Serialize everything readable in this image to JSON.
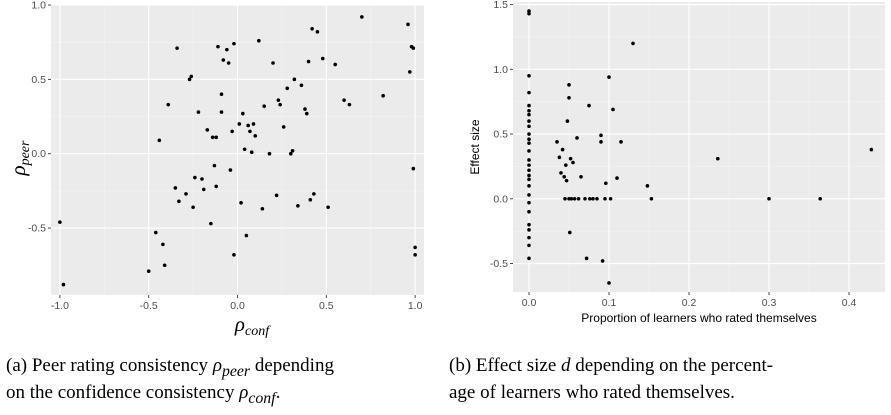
{
  "chart_data": [
    {
      "id": "a",
      "type": "scatter",
      "xlabel": "ρ_conf",
      "ylabel": "ρ_peer",
      "xlim": [
        -1.05,
        1.05
      ],
      "ylim": [
        -0.95,
        1.0
      ],
      "xticks": [
        -1.0,
        -0.5,
        0.0,
        0.5,
        1.0
      ],
      "xtick_labels": [
        "-1.0",
        "-0.5",
        "0.0",
        "0.5",
        "1.0"
      ],
      "yticks": [
        -0.5,
        0.0,
        0.5,
        1.0
      ],
      "ytick_labels": [
        "-0.5",
        "0.0",
        "0.5",
        "1.0"
      ],
      "grid": true,
      "points": [
        [
          -1.0,
          -0.46
        ],
        [
          -0.98,
          -0.88
        ],
        [
          -0.5,
          -0.79
        ],
        [
          -0.46,
          -0.53
        ],
        [
          -0.44,
          0.09
        ],
        [
          -0.42,
          -0.61
        ],
        [
          -0.41,
          -0.75
        ],
        [
          -0.39,
          0.33
        ],
        [
          -0.34,
          0.71
        ],
        [
          -0.35,
          -0.23
        ],
        [
          -0.33,
          -0.32
        ],
        [
          -0.29,
          -0.27
        ],
        [
          -0.27,
          0.5
        ],
        [
          -0.26,
          0.52
        ],
        [
          -0.25,
          -0.36
        ],
        [
          -0.24,
          -0.16
        ],
        [
          -0.22,
          0.28
        ],
        [
          -0.2,
          -0.17
        ],
        [
          -0.19,
          -0.24
        ],
        [
          -0.17,
          0.16
        ],
        [
          -0.15,
          -0.47
        ],
        [
          -0.14,
          0.11
        ],
        [
          -0.13,
          -0.08
        ],
        [
          -0.12,
          0.11
        ],
        [
          -0.12,
          -0.22
        ],
        [
          -0.11,
          0.72
        ],
        [
          -0.09,
          0.4
        ],
        [
          -0.09,
          0.28
        ],
        [
          -0.08,
          0.63
        ],
        [
          -0.06,
          0.7
        ],
        [
          -0.05,
          0.61
        ],
        [
          -0.04,
          -0.11
        ],
        [
          -0.03,
          0.15
        ],
        [
          -0.02,
          0.74
        ],
        [
          -0.02,
          -0.68
        ],
        [
          0.01,
          0.2
        ],
        [
          0.02,
          -0.33
        ],
        [
          0.03,
          0.27
        ],
        [
          0.04,
          0.03
        ],
        [
          0.05,
          -0.55
        ],
        [
          0.06,
          0.19
        ],
        [
          0.07,
          0.15
        ],
        [
          0.08,
          0.01
        ],
        [
          0.09,
          0.2
        ],
        [
          0.1,
          0.12
        ],
        [
          0.12,
          0.76
        ],
        [
          0.14,
          -0.37
        ],
        [
          0.15,
          0.32
        ],
        [
          0.18,
          0.0
        ],
        [
          0.2,
          0.61
        ],
        [
          0.22,
          -0.28
        ],
        [
          0.23,
          0.36
        ],
        [
          0.24,
          0.33
        ],
        [
          0.26,
          0.18
        ],
        [
          0.28,
          0.44
        ],
        [
          0.3,
          0.0
        ],
        [
          0.31,
          0.02
        ],
        [
          0.32,
          0.5
        ],
        [
          0.34,
          -0.35
        ],
        [
          0.36,
          0.46
        ],
        [
          0.38,
          0.3
        ],
        [
          0.39,
          0.27
        ],
        [
          0.4,
          0.62
        ],
        [
          0.41,
          -0.31
        ],
        [
          0.42,
          0.84
        ],
        [
          0.43,
          -0.27
        ],
        [
          0.45,
          0.82
        ],
        [
          0.48,
          0.64
        ],
        [
          0.51,
          -0.36
        ],
        [
          0.55,
          0.6
        ],
        [
          0.6,
          0.36
        ],
        [
          0.63,
          0.33
        ],
        [
          0.7,
          0.92
        ],
        [
          0.82,
          0.39
        ],
        [
          0.96,
          0.87
        ],
        [
          0.97,
          0.55
        ],
        [
          0.98,
          0.72
        ],
        [
          0.99,
          0.71
        ],
        [
          0.99,
          -0.1
        ],
        [
          1.0,
          -0.63
        ],
        [
          1.0,
          -0.68
        ]
      ]
    },
    {
      "id": "b",
      "type": "scatter",
      "xlabel": "Proportion of learners who rated themselves",
      "ylabel": "Effect size",
      "xlim": [
        -0.02,
        0.445
      ],
      "ylim": [
        -0.72,
        1.52
      ],
      "xticks": [
        0.0,
        0.1,
        0.2,
        0.3,
        0.4
      ],
      "xtick_labels": [
        "0.0",
        "0.1",
        "0.2",
        "0.3",
        "0.4"
      ],
      "yticks": [
        -0.5,
        0.0,
        0.5,
        1.0,
        1.5
      ],
      "ytick_labels": [
        "-0.5",
        "0.0",
        "0.5",
        "1.0",
        "1.5"
      ],
      "grid": true,
      "points": [
        [
          0.0,
          1.45
        ],
        [
          0.0,
          1.43
        ],
        [
          0.0,
          0.95
        ],
        [
          0.0,
          0.82
        ],
        [
          0.0,
          0.72
        ],
        [
          0.0,
          0.68
        ],
        [
          0.0,
          0.65
        ],
        [
          0.0,
          0.6
        ],
        [
          0.0,
          0.56
        ],
        [
          0.0,
          0.5
        ],
        [
          0.0,
          0.46
        ],
        [
          0.0,
          0.43
        ],
        [
          0.0,
          0.37
        ],
        [
          0.0,
          0.3
        ],
        [
          0.0,
          0.26
        ],
        [
          0.0,
          0.22
        ],
        [
          0.0,
          0.18
        ],
        [
          0.0,
          0.15
        ],
        [
          0.0,
          0.1
        ],
        [
          0.0,
          0.03
        ],
        [
          0.0,
          -0.03
        ],
        [
          0.0,
          -0.1
        ],
        [
          0.0,
          -0.2
        ],
        [
          0.0,
          -0.24
        ],
        [
          0.0,
          -0.3
        ],
        [
          0.0,
          -0.36
        ],
        [
          0.0,
          -0.46
        ],
        [
          0.035,
          0.44
        ],
        [
          0.038,
          0.32
        ],
        [
          0.04,
          0.2
        ],
        [
          0.042,
          0.38
        ],
        [
          0.044,
          0.17
        ],
        [
          0.045,
          0.0
        ],
        [
          0.046,
          0.26
        ],
        [
          0.047,
          0.14
        ],
        [
          0.048,
          0.6
        ],
        [
          0.05,
          0.78
        ],
        [
          0.05,
          0.88
        ],
        [
          0.05,
          0.0
        ],
        [
          0.051,
          -0.26
        ],
        [
          0.052,
          0.31
        ],
        [
          0.053,
          0.0
        ],
        [
          0.055,
          0.28
        ],
        [
          0.057,
          0.0
        ],
        [
          0.06,
          0.47
        ],
        [
          0.062,
          0.0
        ],
        [
          0.065,
          0.17
        ],
        [
          0.07,
          0.0
        ],
        [
          0.072,
          -0.46
        ],
        [
          0.075,
          0.72
        ],
        [
          0.076,
          0.0
        ],
        [
          0.08,
          0.0
        ],
        [
          0.085,
          0.0
        ],
        [
          0.09,
          0.49
        ],
        [
          0.09,
          0.44
        ],
        [
          0.092,
          -0.48
        ],
        [
          0.095,
          0.0
        ],
        [
          0.096,
          0.12
        ],
        [
          0.1,
          0.94
        ],
        [
          0.1,
          -0.65
        ],
        [
          0.102,
          0.0
        ],
        [
          0.105,
          0.69
        ],
        [
          0.11,
          0.16
        ],
        [
          0.115,
          0.44
        ],
        [
          0.13,
          1.2
        ],
        [
          0.148,
          0.1
        ],
        [
          0.153,
          0.0
        ],
        [
          0.236,
          0.31
        ],
        [
          0.3,
          0.0
        ],
        [
          0.364,
          0.0
        ],
        [
          0.428,
          0.38
        ]
      ]
    }
  ],
  "captions": {
    "a": {
      "l1_before": "(a) Peer rating consistency ",
      "l1_sym": "ρ",
      "l1_sub": "peer",
      "l1_after": " depending",
      "l2_before": "on the confidence consistency ",
      "l2_sym": "ρ",
      "l2_sub": "conf",
      "l2_after": "."
    },
    "b": {
      "l1_before": "(b) Effect size ",
      "l1_sym": "d",
      "l1_after": " depending on the percent-",
      "l2": "age of learners who rated themselves."
    }
  }
}
